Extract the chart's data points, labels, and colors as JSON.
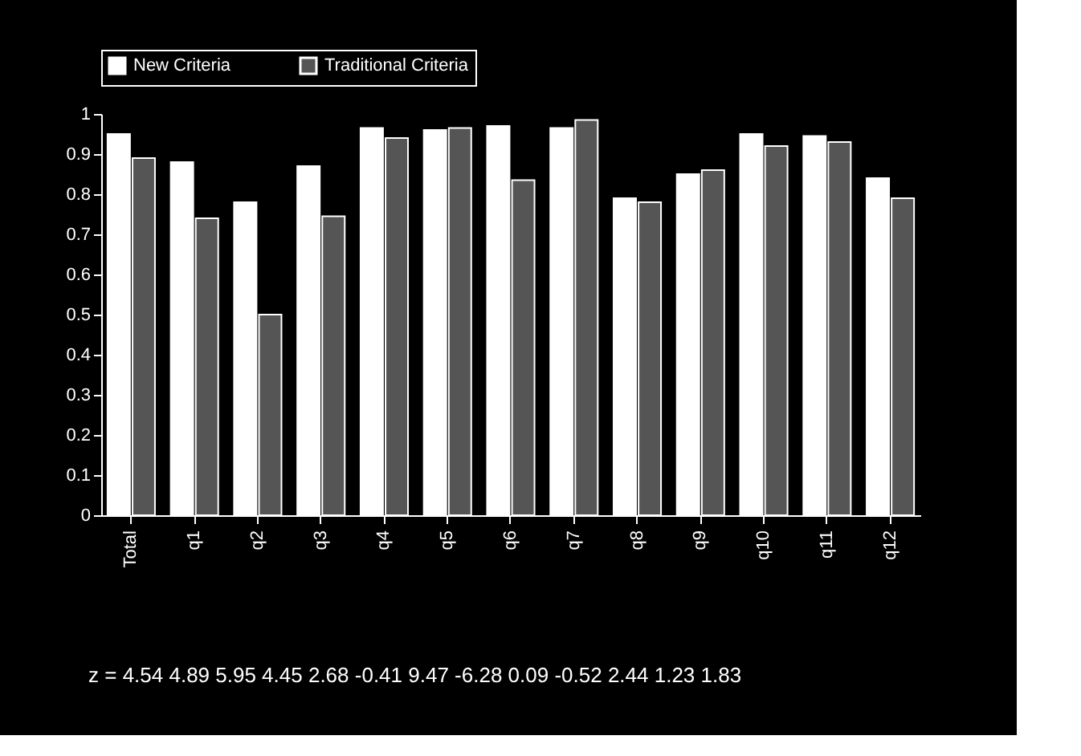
{
  "chart_data": {
    "type": "bar",
    "categories": [
      "Total",
      "q1",
      "q2",
      "q3",
      "q4",
      "q5",
      "q6",
      "q7",
      "q8",
      "q9",
      "q10",
      "q11",
      "q12"
    ],
    "series": [
      {
        "name": "New Criteria",
        "color": "#ffffff",
        "values": [
          0.95,
          0.88,
          0.78,
          0.87,
          0.965,
          0.96,
          0.97,
          0.965,
          0.79,
          0.85,
          0.95,
          0.945,
          0.84
        ]
      },
      {
        "name": "Traditional Criteria",
        "color": "#555555",
        "values": [
          0.89,
          0.74,
          0.5,
          0.745,
          0.94,
          0.965,
          0.835,
          0.985,
          0.78,
          0.86,
          0.92,
          0.93,
          0.79
        ]
      }
    ],
    "ylim": [
      0,
      1
    ],
    "yticks": [
      0,
      0.1,
      0.2,
      0.3,
      0.4,
      0.5,
      0.6,
      0.7,
      0.8,
      0.9,
      1
    ],
    "grid": false,
    "legend": "top",
    "annotations": [
      "z = 4.54   4.89   5.95   4.45   2.68   -0.41   9.47   -6.28   0.09   -0.52   2.44   1.23   1.83"
    ]
  }
}
